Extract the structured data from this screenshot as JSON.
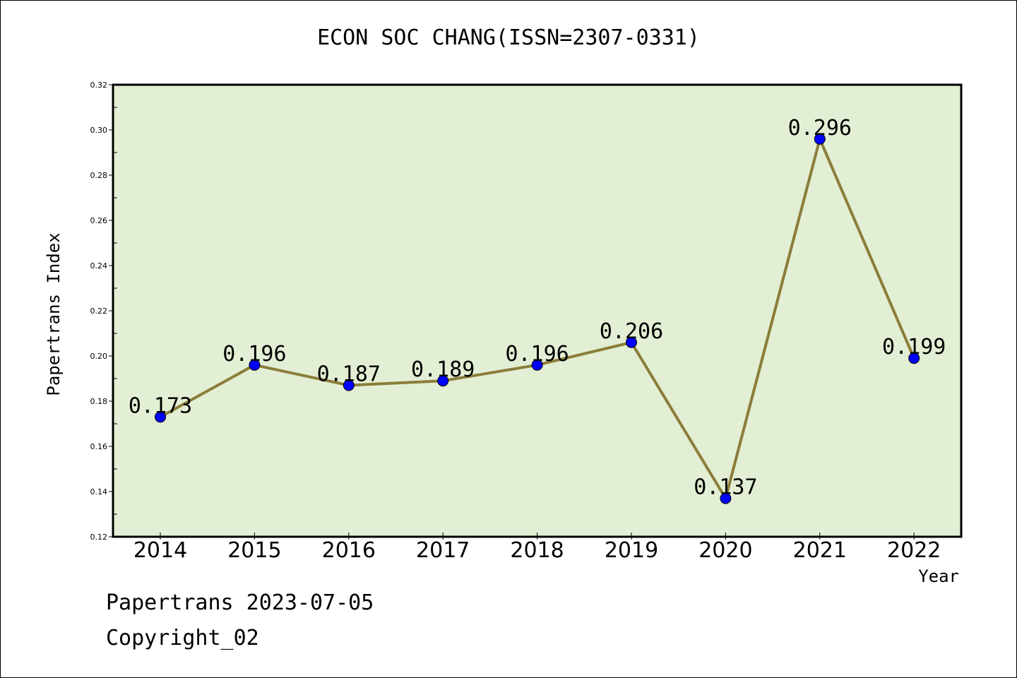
{
  "chart_data": {
    "type": "line",
    "title": "ECON SOC CHANG(ISSN=2307-0331)",
    "xlabel": "Year",
    "ylabel": "Papertrans Index",
    "categories": [
      "2014",
      "2015",
      "2016",
      "2017",
      "2018",
      "2019",
      "2020",
      "2021",
      "2022"
    ],
    "values": [
      0.173,
      0.196,
      0.187,
      0.189,
      0.196,
      0.206,
      0.137,
      0.296,
      0.199
    ],
    "data_labels": [
      "0.173",
      "0.196",
      "0.187",
      "0.189",
      "0.196",
      "0.206",
      "0.137",
      "0.296",
      "0.199"
    ],
    "ylim": [
      0.12,
      0.32
    ],
    "y_ticks": [
      "0.12",
      "0.14",
      "0.16",
      "0.18",
      "0.20",
      "0.22",
      "0.24",
      "0.26",
      "0.28",
      "0.30",
      "0.32"
    ],
    "grid": false,
    "colors": {
      "plot_background": "#e2efd4",
      "line": "#8b7d3a",
      "marker": "#0000ff"
    }
  },
  "footer": {
    "date_text": "Papertrans 2023-07-05",
    "copyright_text": "Copyright_02"
  }
}
